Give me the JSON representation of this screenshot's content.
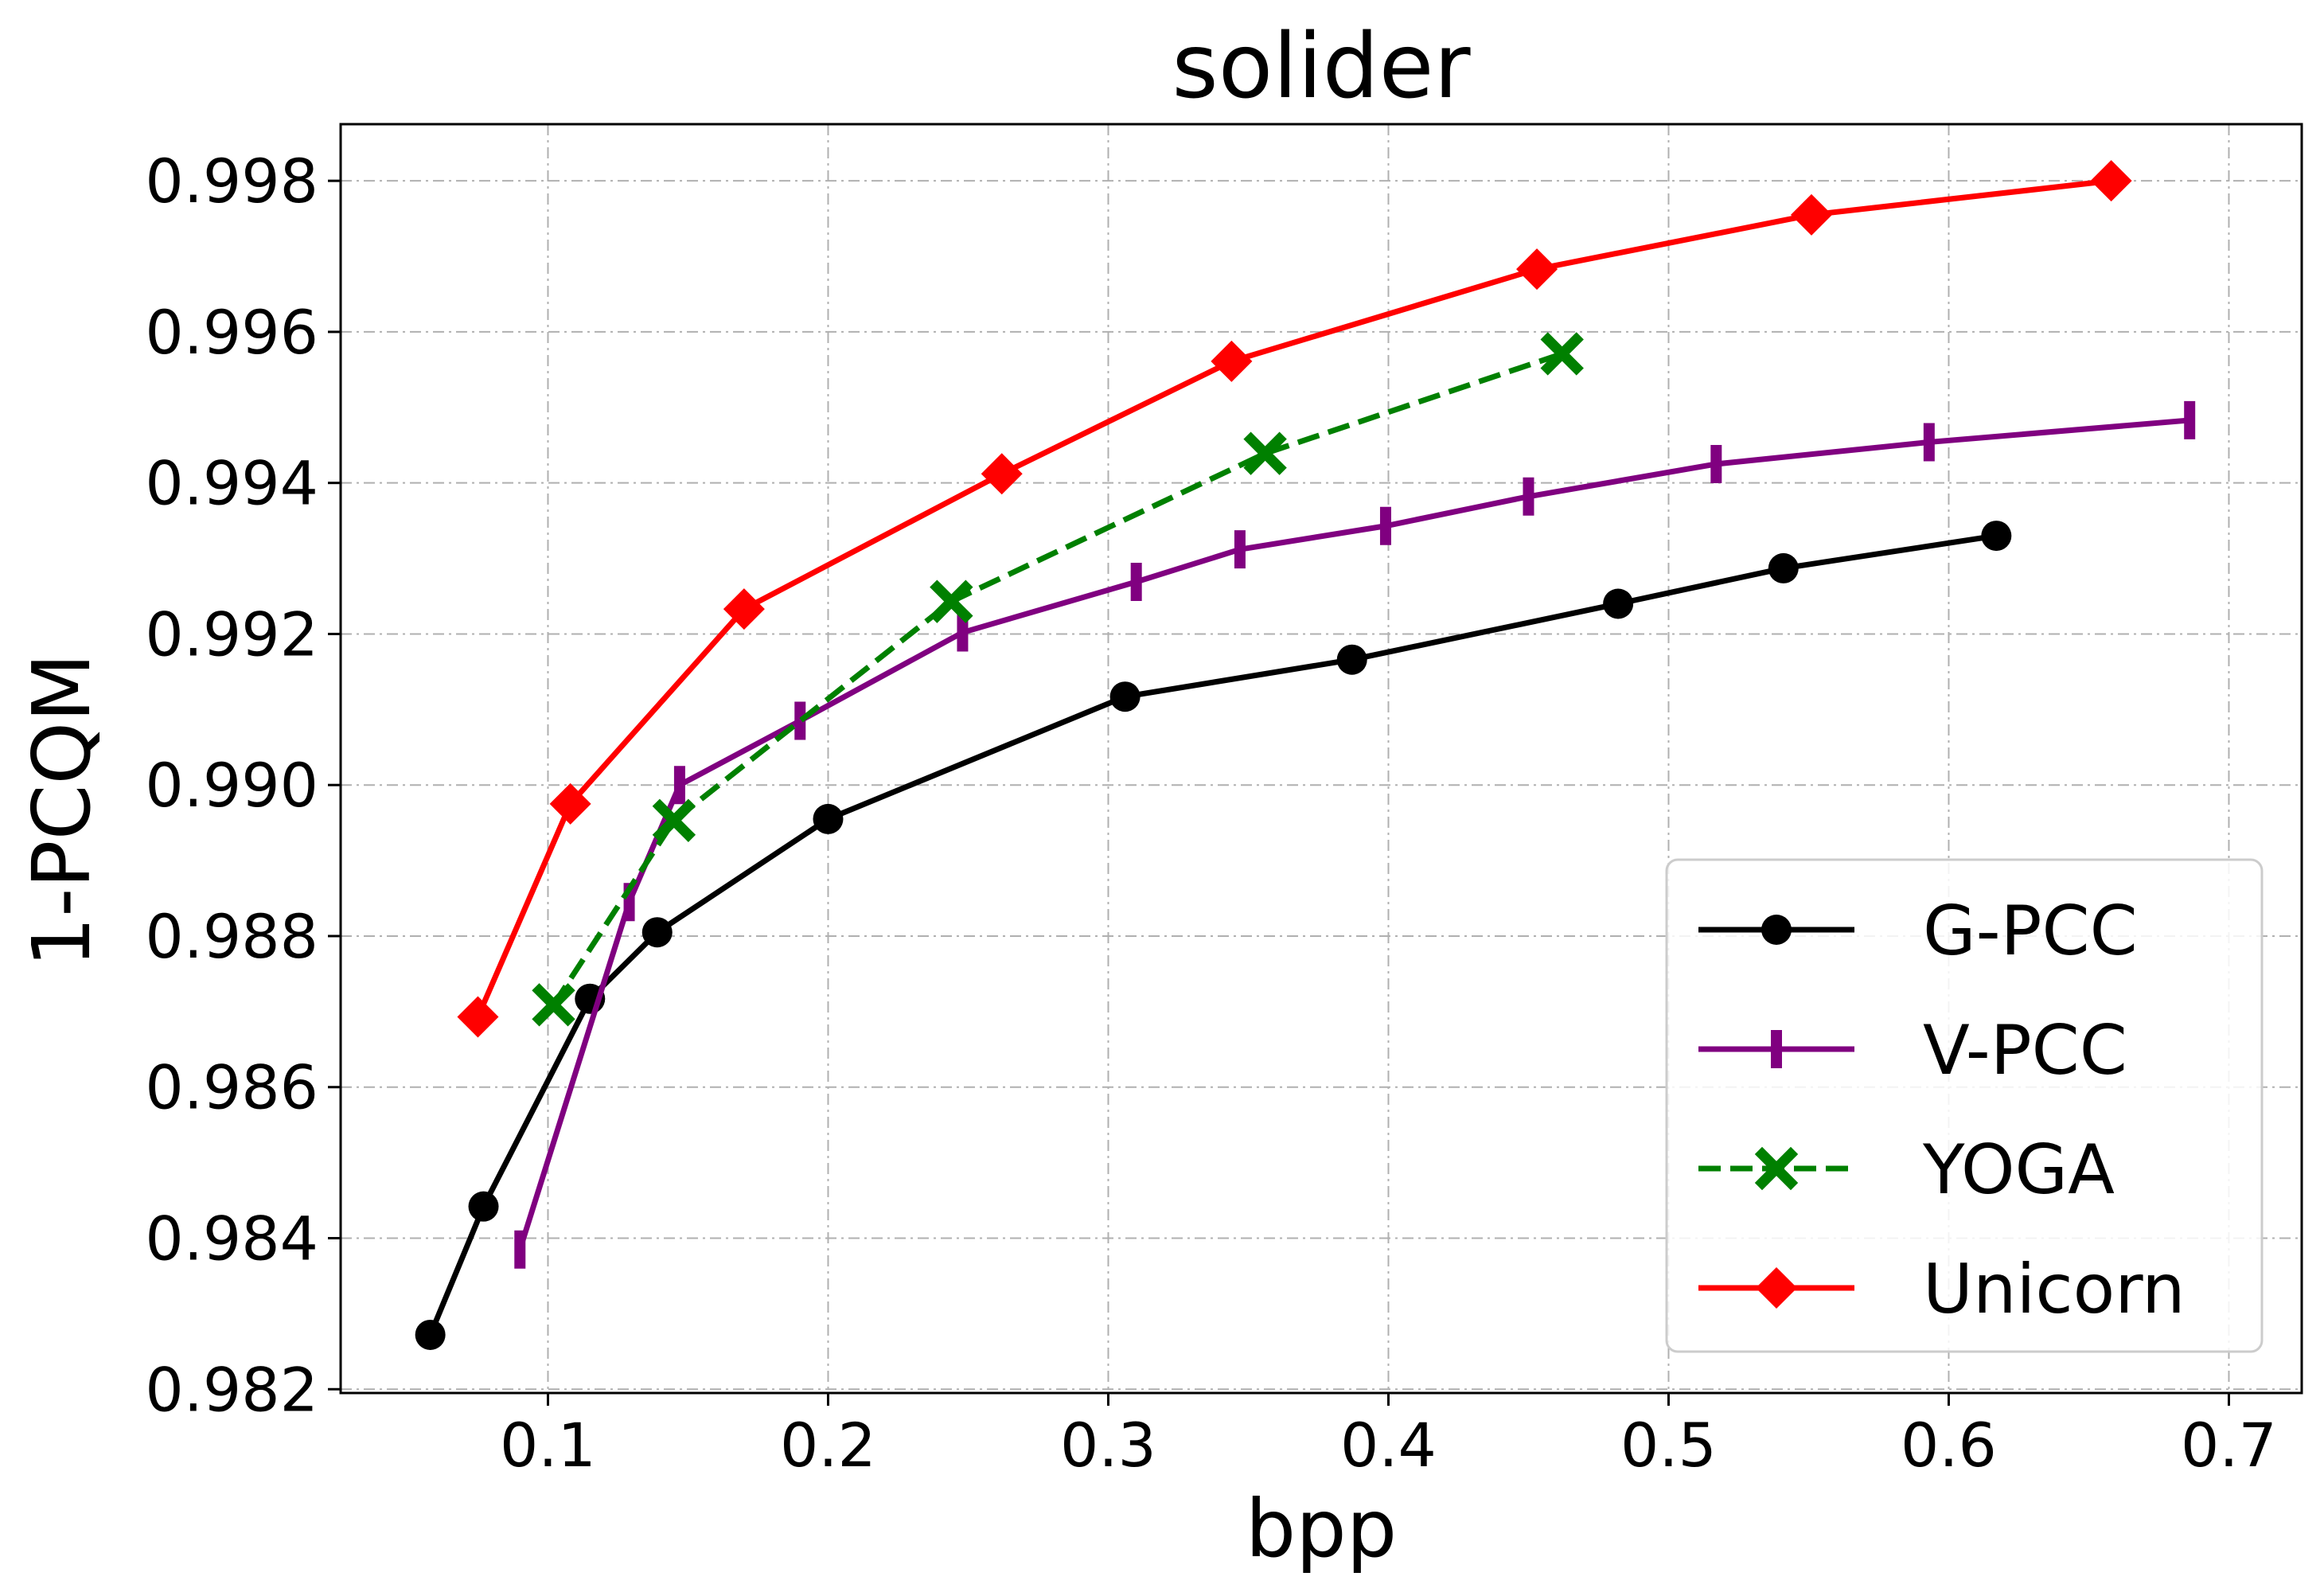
{
  "chart_data": {
    "type": "line",
    "title": "solider",
    "xlabel": "bpp",
    "ylabel": "1-PCQM",
    "xlim": [
      0.026,
      0.726
    ],
    "ylim": [
      0.98195,
      0.99875
    ],
    "xticks": [
      0.1,
      0.2,
      0.3,
      0.4,
      0.5,
      0.6,
      0.7
    ],
    "xtick_labels": [
      "0.1",
      "0.2",
      "0.3",
      "0.4",
      "0.5",
      "0.6",
      "0.7"
    ],
    "yticks": [
      0.982,
      0.984,
      0.986,
      0.988,
      0.99,
      0.992,
      0.994,
      0.996,
      0.998
    ],
    "ytick_labels": [
      "0.982",
      "0.984",
      "0.986",
      "0.988",
      "0.990",
      "0.992",
      "0.994",
      "0.996",
      "0.998"
    ],
    "grid": true,
    "legend_position": "bottom-right",
    "series": [
      {
        "name": "G-PCC",
        "color": "#000000",
        "marker": "circle",
        "linestyle": "solid",
        "x": [
          0.058,
          0.077,
          0.115,
          0.139,
          0.2,
          0.306,
          0.387,
          0.482,
          0.541,
          0.617
        ],
        "y": [
          0.98272,
          0.98442,
          0.98717,
          0.98805,
          0.98955,
          0.99117,
          0.99166,
          0.9924,
          0.99287,
          0.9933
        ]
      },
      {
        "name": "V-PCC",
        "color": "#800080",
        "marker": "vline",
        "linestyle": "solid",
        "x": [
          0.09,
          0.129,
          0.147,
          0.19,
          0.248,
          0.31,
          0.347,
          0.399,
          0.45,
          0.517,
          0.593,
          0.686
        ],
        "y": [
          0.98385,
          0.98845,
          0.99,
          0.99085,
          0.99202,
          0.99269,
          0.99312,
          0.99343,
          0.99382,
          0.99425,
          0.99454,
          0.99483
        ]
      },
      {
        "name": "YOGA",
        "color": "#008000",
        "marker": "x",
        "linestyle": "dashed",
        "x": [
          0.102,
          0.145,
          0.244,
          0.356,
          0.462
        ],
        "y": [
          0.98709,
          0.98953,
          0.99243,
          0.99439,
          0.99571
        ]
      },
      {
        "name": "Unicorn",
        "color": "#ff0000",
        "marker": "diamond",
        "linestyle": "solid",
        "x": [
          0.075,
          0.108,
          0.17,
          0.262,
          0.344,
          0.453,
          0.551,
          0.658
        ],
        "y": [
          0.98693,
          0.98975,
          0.99233,
          0.99412,
          0.99561,
          0.99683,
          0.99755,
          0.998
        ]
      }
    ]
  }
}
